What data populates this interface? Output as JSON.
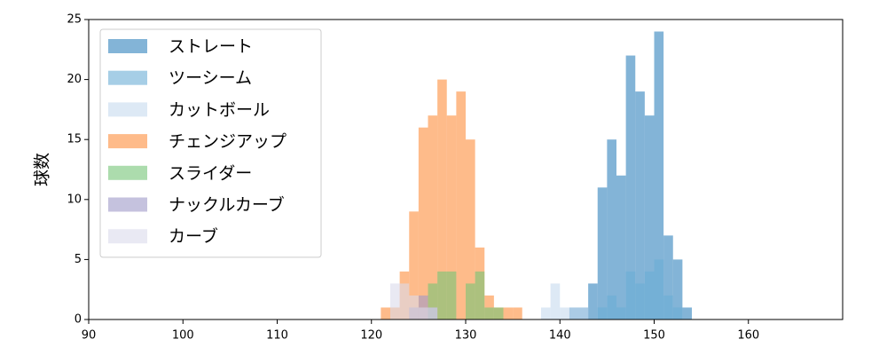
{
  "chart_data": {
    "type": "histogram",
    "ylabel": "球数",
    "xlim": [
      90,
      170
    ],
    "xticks": [
      90,
      100,
      110,
      120,
      130,
      140,
      150,
      160
    ],
    "ylim": [
      0,
      25
    ],
    "yticks": [
      0,
      5,
      10,
      15,
      20,
      25
    ],
    "legend": "upper left",
    "series": [
      {
        "name": "ストレート",
        "color": "#3182bd",
        "bins": [
          141,
          142,
          143,
          144,
          145,
          146,
          147,
          148,
          149,
          150,
          151,
          152,
          153,
          154
        ],
        "values": [
          1,
          1,
          3,
          11,
          15,
          12,
          22,
          19,
          17,
          24,
          7,
          5,
          1
        ]
      },
      {
        "name": "ツーシーム",
        "color": "#6baed6",
        "bins": [
          144,
          145,
          146,
          147,
          148,
          149,
          150,
          151,
          152,
          153
        ],
        "values": [
          1,
          2,
          1,
          4,
          3,
          4,
          5,
          2,
          1
        ]
      },
      {
        "name": "カットボール",
        "color": "#c6dbef",
        "bins": [
          138,
          139,
          140,
          141,
          142,
          143
        ],
        "values": [
          1,
          3,
          1,
          1,
          1
        ]
      },
      {
        "name": "チェンジアップ",
        "color": "#fd8d3c",
        "bins": [
          121,
          122,
          123,
          124,
          125,
          126,
          127,
          128,
          129,
          130,
          131,
          132,
          133,
          134,
          135,
          136
        ],
        "values": [
          1,
          1,
          4,
          9,
          16,
          17,
          20,
          17,
          19,
          15,
          6,
          2,
          1,
          1,
          1
        ]
      },
      {
        "name": "スライダー",
        "color": "#74c476",
        "bins": [
          126,
          127,
          128,
          129,
          130,
          131,
          132,
          133,
          134
        ],
        "values": [
          3,
          4,
          4,
          0,
          3,
          4,
          1,
          1
        ]
      },
      {
        "name": "ナックルカーブ",
        "color": "#9e9ac8",
        "bins": [
          124,
          125,
          126,
          127
        ],
        "values": [
          1,
          2,
          1
        ]
      },
      {
        "name": "カーブ",
        "color": "#dadaeb",
        "bins": [
          122,
          123,
          124,
          125,
          126,
          127
        ],
        "values": [
          3,
          3,
          2,
          1,
          1
        ]
      }
    ]
  }
}
